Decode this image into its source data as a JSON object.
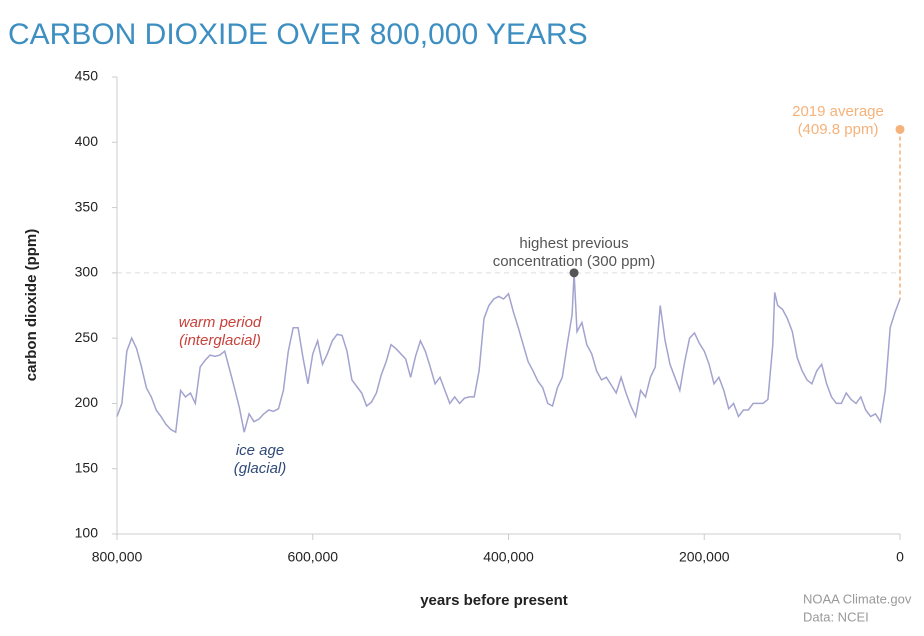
{
  "chart_data": {
    "type": "line",
    "title": "CARBON DIOXIDE OVER 800,000 YEARS",
    "x_label": "years before present",
    "y_label": "carbon dioxide (ppm)",
    "credit": [
      "NOAA Climate.gov",
      "Data: NCEI"
    ],
    "color": "#a3a3cf",
    "x": [
      800000,
      795000,
      790000,
      785000,
      780000,
      775000,
      770000,
      765000,
      760000,
      755000,
      750000,
      745000,
      740000,
      735000,
      730000,
      725000,
      720000,
      715000,
      710000,
      705000,
      700000,
      695000,
      690000,
      685000,
      680000,
      675000,
      670000,
      665000,
      660000,
      655000,
      650000,
      645000,
      640000,
      635000,
      630000,
      625000,
      620000,
      615000,
      610000,
      605000,
      600000,
      595000,
      590000,
      585000,
      580000,
      575000,
      570000,
      565000,
      560000,
      555000,
      550000,
      545000,
      540000,
      535000,
      530000,
      525000,
      520000,
      515000,
      510000,
      505000,
      500000,
      495000,
      490000,
      485000,
      480000,
      475000,
      470000,
      465000,
      460000,
      455000,
      450000,
      445000,
      440000,
      435000,
      430000,
      425000,
      420000,
      415000,
      410000,
      405000,
      400000,
      395000,
      390000,
      385000,
      380000,
      375000,
      370000,
      365000,
      360000,
      355000,
      350000,
      345000,
      340000,
      335000,
      333000,
      330000,
      325000,
      320000,
      315000,
      310000,
      305000,
      300000,
      295000,
      290000,
      285000,
      280000,
      275000,
      270000,
      265000,
      260000,
      255000,
      250000,
      245000,
      240000,
      235000,
      230000,
      225000,
      220000,
      215000,
      210000,
      205000,
      200000,
      195000,
      190000,
      185000,
      180000,
      175000,
      170000,
      165000,
      160000,
      155000,
      150000,
      145000,
      140000,
      135000,
      130000,
      128000,
      125000,
      120000,
      115000,
      110000,
      105000,
      100000,
      95000,
      90000,
      85000,
      80000,
      75000,
      70000,
      65000,
      60000,
      55000,
      50000,
      45000,
      40000,
      35000,
      30000,
      25000,
      20000,
      15000,
      10000,
      5000,
      0
    ],
    "values": [
      190,
      200,
      240,
      250,
      242,
      228,
      212,
      205,
      195,
      190,
      184,
      180,
      178,
      210,
      205,
      208,
      200,
      228,
      233,
      237,
      236,
      237,
      240,
      226,
      212,
      197,
      178,
      192,
      186,
      188,
      192,
      195,
      194,
      196,
      210,
      240,
      258,
      258,
      235,
      215,
      238,
      248,
      230,
      238,
      248,
      253,
      252,
      240,
      218,
      213,
      208,
      198,
      201,
      208,
      222,
      232,
      245,
      242,
      238,
      234,
      220,
      236,
      248,
      240,
      228,
      215,
      220,
      210,
      200,
      205,
      200,
      204,
      205,
      205,
      225,
      265,
      275,
      280,
      282,
      280,
      284,
      270,
      258,
      245,
      232,
      225,
      217,
      212,
      200,
      198,
      212,
      220,
      245,
      268,
      300,
      255,
      262,
      245,
      238,
      225,
      218,
      220,
      214,
      208,
      220,
      208,
      198,
      190,
      210,
      205,
      220,
      228,
      275,
      248,
      230,
      220,
      210,
      232,
      250,
      254,
      246,
      240,
      230,
      215,
      220,
      210,
      196,
      200,
      190,
      195,
      195,
      200,
      200,
      200,
      203,
      245,
      285,
      275,
      272,
      265,
      255,
      235,
      225,
      218,
      215,
      225,
      230,
      215,
      205,
      200,
      200,
      208,
      203,
      200,
      205,
      195,
      190,
      192,
      186,
      210,
      258,
      270,
      280
    ],
    "xlim": [
      800000,
      0
    ],
    "xticks": [
      {
        "value": 800000,
        "label": "800,000"
      },
      {
        "value": 600000,
        "label": "600,000"
      },
      {
        "value": 400000,
        "label": "400,000"
      },
      {
        "value": 200000,
        "label": "200,000"
      },
      0
    ],
    "ylim": [
      100,
      450
    ],
    "yticks": [
      100,
      150,
      200,
      250,
      300,
      350,
      400,
      450
    ],
    "reference_line": 300,
    "highest_previous": {
      "lines": [
        "highest previous",
        "concentration (300 ppm)"
      ],
      "index": 94
    },
    "current": {
      "lines": [
        "2019 average",
        "(409.8 ppm)"
      ],
      "x": 0,
      "y": 409.8,
      "color": "#f5b27a"
    },
    "warm_label": {
      "lines": [
        "warm period",
        "(interglacial)"
      ],
      "color": "#c8413b"
    },
    "ice_label": {
      "lines": [
        "ice age",
        "(glacial)"
      ],
      "color": "#2f4a78"
    }
  }
}
